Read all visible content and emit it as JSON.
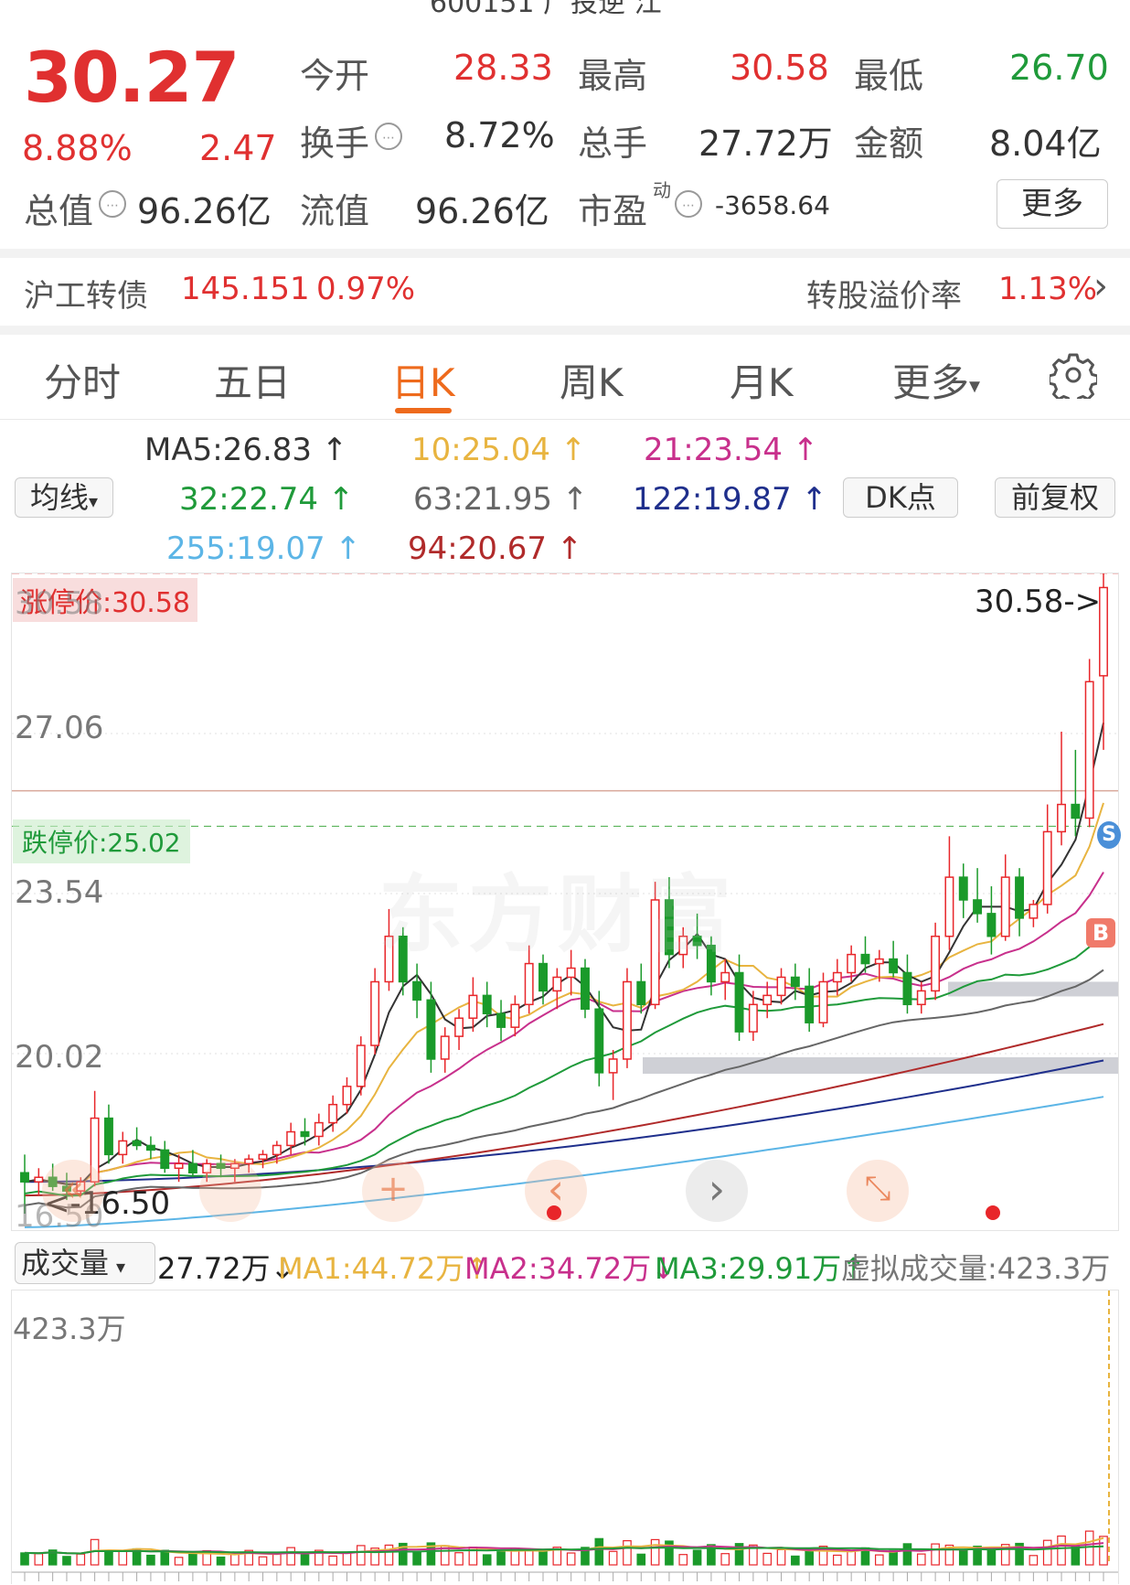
{
  "top_cut_text": "600151 广投逆 江",
  "quote": {
    "price": "30.27",
    "change_pct": "8.88%",
    "change_amt": "2.47",
    "open_label": "今开",
    "open": "28.33",
    "high_label": "最高",
    "high": "30.58",
    "low_label": "最低",
    "low": "26.70",
    "turnover_label": "换手",
    "turnover": "8.72%",
    "volume_label": "总手",
    "volume": "27.72万",
    "amount_label": "金额",
    "amount": "8.04亿",
    "mktcap_label": "总值",
    "mktcap": "96.26亿",
    "float_label": "流值",
    "float": "96.26亿",
    "pe_label": "市盈",
    "pe_sup": "动",
    "pe": "-3658.64",
    "more_btn": "更多"
  },
  "bond": {
    "name": "沪工转债",
    "price": "145.151",
    "change": "0.97%",
    "premium_label": "转股溢价率",
    "premium": "1.13%",
    "chevron": "›"
  },
  "tabs": {
    "items": [
      "分时",
      "五日",
      "日K",
      "周K",
      "月K"
    ],
    "active": "日K",
    "more": "更多",
    "more_caret": "▾",
    "settings_icon": "gear-icon"
  },
  "ma_panel": {
    "selector": "均线",
    "selector_caret": "▾",
    "ma5": "MA5:26.83",
    "ma10": "10:25.04",
    "ma21": "21:23.54",
    "ma32": "32:22.74",
    "ma63": "63:21.95",
    "ma122": "122:19.87",
    "ma255": "255:19.07",
    "ma94": "94:20.67",
    "arrow": "↑",
    "dk_btn": "DK点",
    "fq_btn": "前复权",
    "colors": {
      "ma5": "#333333",
      "ma10": "#e8b440",
      "ma21": "#c8308c",
      "ma32": "#1f9a3a",
      "ma63": "#666666",
      "ma122": "#1f2f8c",
      "ma255": "#5cb5e6",
      "ma94": "#b02a2a"
    }
  },
  "chart_overlay": {
    "limit_up_label": "涨停价:30.58",
    "limit_down_label": "跌停价:25.02",
    "max_overlap_label": "30.58",
    "max_price_tag": "30.58->",
    "min_price_tag": "16.50",
    "min_axis_label": "16.50",
    "axis_labels": [
      "27.06",
      "23.54",
      "20.02"
    ],
    "watermark": "东方财富",
    "signal_s": "S",
    "signal_b": "B"
  },
  "nav_overlay": {
    "prev_fast": "«",
    "prev": "‹",
    "next": "›",
    "expand_icon": "expand-icon"
  },
  "volume_panel": {
    "label": "成交量",
    "caret": "▾",
    "current": "27.72万↓",
    "ma1": "MA1:44.72万↑",
    "ma2": "MA2:34.72万↓",
    "ma3": "MA3:29.91万↑",
    "virtual": "虚拟成交量:423.3万",
    "max_label": "423.3万"
  },
  "chart_data": {
    "type": "candlestick",
    "y_axis_ticks": [
      27.06,
      23.54,
      20.02
    ],
    "y_range": [
      16.5,
      30.58
    ],
    "limit_up": 30.58,
    "limit_down": 25.02,
    "candles": [
      [
        17.4,
        17.8,
        16.5,
        17.2
      ],
      [
        17.2,
        17.5,
        16.9,
        17.3
      ],
      [
        17.3,
        17.6,
        17.0,
        17.1
      ],
      [
        17.1,
        17.4,
        16.8,
        17.0
      ],
      [
        17.0,
        17.3,
        16.9,
        17.2
      ],
      [
        17.2,
        19.2,
        17.1,
        18.6
      ],
      [
        18.6,
        18.9,
        17.6,
        17.8
      ],
      [
        17.8,
        18.3,
        17.6,
        18.1
      ],
      [
        18.1,
        18.4,
        17.9,
        18.0
      ],
      [
        18.0,
        18.2,
        17.7,
        17.9
      ],
      [
        17.9,
        18.1,
        17.4,
        17.5
      ],
      [
        17.5,
        17.8,
        17.2,
        17.6
      ],
      [
        17.6,
        17.9,
        17.3,
        17.4
      ],
      [
        17.4,
        17.7,
        17.2,
        17.6
      ],
      [
        17.6,
        17.8,
        17.3,
        17.5
      ],
      [
        17.5,
        17.7,
        17.2,
        17.6
      ],
      [
        17.6,
        17.8,
        17.4,
        17.7
      ],
      [
        17.7,
        17.9,
        17.5,
        17.8
      ],
      [
        17.8,
        18.1,
        17.6,
        18.0
      ],
      [
        18.0,
        18.5,
        17.8,
        18.3
      ],
      [
        18.3,
        18.6,
        18.0,
        18.2
      ],
      [
        18.2,
        18.7,
        18.0,
        18.5
      ],
      [
        18.5,
        19.1,
        18.3,
        18.9
      ],
      [
        18.9,
        19.5,
        18.7,
        19.3
      ],
      [
        19.3,
        20.4,
        19.1,
        20.2
      ],
      [
        20.2,
        21.9,
        20.0,
        21.6
      ],
      [
        21.6,
        23.2,
        21.4,
        22.6
      ],
      [
        22.6,
        22.8,
        21.3,
        21.6
      ],
      [
        21.6,
        22.0,
        20.8,
        21.2
      ],
      [
        21.2,
        21.6,
        19.6,
        19.9
      ],
      [
        19.9,
        20.6,
        19.6,
        20.4
      ],
      [
        20.4,
        21.0,
        20.1,
        20.8
      ],
      [
        20.8,
        21.7,
        20.5,
        21.3
      ],
      [
        21.3,
        21.6,
        20.6,
        20.9
      ],
      [
        20.9,
        21.2,
        20.3,
        20.6
      ],
      [
        20.6,
        21.3,
        20.4,
        21.1
      ],
      [
        21.1,
        22.4,
        20.9,
        22.0
      ],
      [
        22.0,
        22.2,
        21.1,
        21.4
      ],
      [
        21.4,
        21.9,
        21.0,
        21.7
      ],
      [
        21.7,
        22.3,
        21.3,
        21.9
      ],
      [
        21.9,
        22.1,
        20.8,
        21.0
      ],
      [
        21.0,
        21.4,
        19.3,
        19.6
      ],
      [
        19.6,
        20.1,
        19.0,
        19.9
      ],
      [
        19.9,
        21.9,
        19.7,
        21.6
      ],
      [
        21.6,
        22.0,
        20.9,
        21.1
      ],
      [
        21.1,
        23.8,
        21.0,
        23.4
      ],
      [
        23.4,
        23.9,
        21.9,
        22.2
      ],
      [
        22.2,
        22.8,
        21.9,
        22.6
      ],
      [
        22.6,
        23.1,
        22.1,
        22.4
      ],
      [
        22.4,
        22.6,
        21.3,
        21.6
      ],
      [
        21.6,
        22.1,
        21.2,
        21.8
      ],
      [
        21.8,
        22.2,
        20.3,
        20.5
      ],
      [
        20.5,
        21.4,
        20.3,
        21.1
      ],
      [
        21.1,
        21.6,
        20.8,
        21.3
      ],
      [
        21.3,
        21.9,
        21.1,
        21.7
      ],
      [
        21.7,
        22.0,
        21.2,
        21.5
      ],
      [
        21.5,
        21.9,
        20.5,
        20.7
      ],
      [
        20.7,
        21.8,
        20.6,
        21.6
      ],
      [
        21.6,
        22.1,
        21.3,
        21.8
      ],
      [
        21.8,
        22.4,
        21.6,
        22.2
      ],
      [
        22.2,
        22.6,
        21.8,
        22.0
      ],
      [
        22.0,
        22.3,
        21.6,
        22.1
      ],
      [
        22.1,
        22.5,
        21.7,
        21.8
      ],
      [
        21.8,
        22.2,
        20.9,
        21.1
      ],
      [
        21.1,
        21.6,
        20.9,
        21.4
      ],
      [
        21.4,
        22.9,
        21.2,
        22.6
      ],
      [
        22.6,
        24.8,
        22.3,
        23.9
      ],
      [
        23.9,
        24.2,
        23.0,
        23.4
      ],
      [
        23.4,
        24.1,
        22.9,
        23.1
      ],
      [
        23.1,
        23.7,
        22.2,
        22.6
      ],
      [
        22.6,
        24.4,
        22.5,
        23.9
      ],
      [
        23.9,
        24.1,
        22.6,
        23.0
      ],
      [
        23.0,
        23.4,
        22.8,
        23.3
      ],
      [
        23.3,
        25.5,
        23.1,
        24.9
      ],
      [
        24.9,
        27.1,
        24.6,
        25.5
      ],
      [
        25.5,
        26.7,
        24.8,
        25.2
      ],
      [
        25.2,
        28.7,
        25.0,
        28.2
      ],
      [
        28.33,
        30.58,
        26.7,
        30.27
      ]
    ]
  }
}
